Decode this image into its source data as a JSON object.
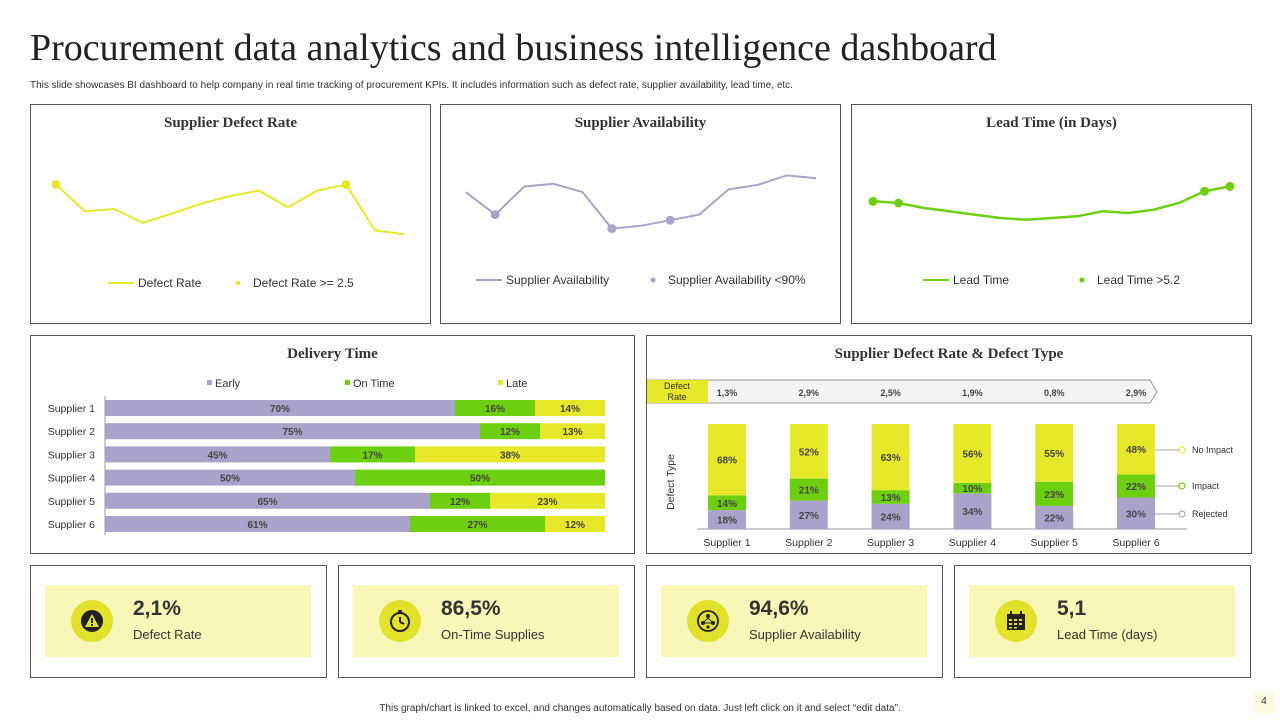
{
  "header": {
    "title": "Procurement data analytics and business intelligence dashboard",
    "subtitle": "This slide showcases BI dashboard to help company in real time tracking of procurement KPIs.  It includes information such as defect rate, supplier availability, lead time, etc."
  },
  "colors": {
    "yellow": "#e8e82a",
    "purple": "#a9a3cb",
    "green": "#6ccf10",
    "panel_border": "#555555",
    "kpi_bg": "#f8f7b8"
  },
  "chart_data": [
    {
      "type": "line",
      "title": "Supplier Defect Rate",
      "series": [
        {
          "name": "Defect Rate",
          "values": [
            2.55,
            2.2,
            2.23,
            2.05,
            2.17,
            2.3,
            2.4,
            2.47,
            2.25,
            2.47,
            2.55,
            1.95,
            1.9
          ]
        },
        {
          "name": "Defect Rate >= 2.5",
          "values": [
            2.55,
            null,
            null,
            null,
            null,
            null,
            null,
            null,
            null,
            null,
            2.55,
            null,
            null
          ]
        }
      ],
      "legend": [
        "Defect Rate",
        "Defect Rate >= 2.5"
      ],
      "legend_position": "bottom",
      "ylim": [
        1.5,
        3.0
      ]
    },
    {
      "type": "line",
      "title": "Supplier Availability",
      "series": [
        {
          "name": "Supplier Availability",
          "values": [
            93,
            89,
            94,
            94.5,
            93,
            86.5,
            87,
            88,
            89,
            93.5,
            94.3,
            96,
            95.5
          ]
        },
        {
          "name": "Supplier Availability <90%",
          "values": [
            null,
            89,
            null,
            null,
            null,
            86.5,
            null,
            88,
            null,
            null,
            null,
            null,
            null
          ]
        }
      ],
      "legend": [
        "Supplier Availability",
        "Supplier Availability <90%"
      ],
      "legend_position": "bottom",
      "ylim": [
        80,
        100
      ]
    },
    {
      "type": "line",
      "title": "Lead Time (in Days)",
      "series": [
        {
          "name": "Lead Time",
          "values": [
            5.05,
            5.0,
            4.85,
            4.75,
            4.65,
            4.55,
            4.5,
            4.55,
            4.6,
            4.75,
            4.7,
            4.8,
            5.0,
            5.35,
            5.5
          ]
        },
        {
          "name": "Lead Time >5.2",
          "values": [
            5.05,
            5.0,
            null,
            null,
            null,
            null,
            null,
            null,
            null,
            null,
            null,
            null,
            null,
            5.35,
            5.5
          ]
        }
      ],
      "legend": [
        "Lead Time",
        "Lead Time >5.2"
      ],
      "legend_position": "bottom",
      "ylim": [
        3.5,
        6.5
      ]
    },
    {
      "type": "bar",
      "orientation": "horizontal-stacked",
      "title": "Delivery Time",
      "categories": [
        "Supplier 1",
        "Supplier 2",
        "Supplier 3",
        "Supplier 4",
        "Supplier 5",
        "Supplier 6"
      ],
      "series": [
        {
          "name": "Early",
          "values": [
            70,
            75,
            45,
            50,
            65,
            61
          ]
        },
        {
          "name": "On Time",
          "values": [
            16,
            12,
            17,
            50,
            12,
            27
          ]
        },
        {
          "name": "Late",
          "values": [
            14,
            13,
            38,
            0,
            23,
            12
          ]
        }
      ],
      "legend_position": "top"
    },
    {
      "type": "bar",
      "orientation": "vertical-stacked",
      "title": "Supplier Defect Rate & Defect Type",
      "ylabel": "Defect Type",
      "categories": [
        "Supplier 1",
        "Supplier 2",
        "Supplier 3",
        "Supplier 4",
        "Supplier 5",
        "Supplier 6"
      ],
      "defect_rate_label": "Defect Rate",
      "defect_rates": [
        "1,3%",
        "2,9%",
        "2,5%",
        "1,9%",
        "0,8%",
        "2,9%"
      ],
      "series": [
        {
          "name": "Rejected",
          "values": [
            18,
            27,
            24,
            34,
            22,
            30
          ]
        },
        {
          "name": "Impact",
          "values": [
            14,
            21,
            13,
            10,
            23,
            22
          ]
        },
        {
          "name": "No Impact",
          "values": [
            68,
            52,
            63,
            56,
            55,
            48
          ]
        }
      ],
      "legend_position": "right"
    }
  ],
  "kpis": [
    {
      "value": "2,1%",
      "label": "Defect Rate",
      "icon": "warning-icon"
    },
    {
      "value": "86,5%",
      "label": "On-Time Supplies",
      "icon": "stopwatch-icon"
    },
    {
      "value": "94,6%",
      "label": "Supplier Availability",
      "icon": "network-icon"
    },
    {
      "value": "5,1",
      "label": "Lead Time (days)",
      "icon": "calendar-icon"
    }
  ],
  "footer": {
    "note": "This graph/chart is linked to excel, and changes automatically based on data. Just left click on it and select “edit data”.",
    "page_number": "4"
  }
}
